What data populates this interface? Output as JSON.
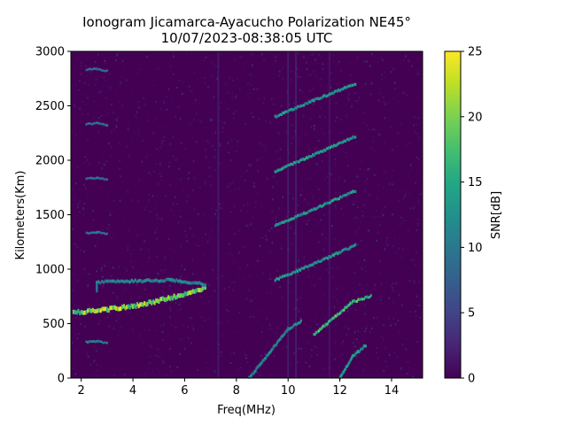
{
  "chart_data": {
    "type": "heatmap",
    "title": "Ionogram Jicamarca-Ayacucho Polarization NE45°",
    "subtitle": "10/07/2023-08:38:05 UTC",
    "xlabel": "Freq(MHz)",
    "ylabel": "Kilometers(Km)",
    "colorbar_label": "SNR[dB]",
    "colormap": "viridis",
    "xlim": [
      1.6,
      15.2
    ],
    "ylim": [
      0,
      3000
    ],
    "clim": [
      0,
      25
    ],
    "x_ticks": [
      2,
      4,
      6,
      8,
      10,
      12,
      14
    ],
    "y_ticks": [
      0,
      500,
      1000,
      1500,
      2000,
      2500,
      3000
    ],
    "colorbar_ticks": [
      0,
      5,
      10,
      15,
      20,
      25
    ],
    "grid": false,
    "background_snr": 0,
    "traces": [
      {
        "points": [
          [
            1.7,
            600
          ],
          [
            3.0,
            630
          ],
          [
            4.0,
            660
          ],
          [
            5.0,
            710
          ],
          [
            5.8,
            760
          ],
          [
            6.8,
            830
          ]
        ],
        "snr": 22,
        "width_km": 40
      },
      {
        "points": [
          [
            2.6,
            800
          ],
          [
            2.6,
            880
          ],
          [
            5.5,
            900
          ],
          [
            6.8,
            860
          ]
        ],
        "snr": 12,
        "width_km": 30
      },
      {
        "points": [
          [
            8.5,
            0
          ],
          [
            10.0,
            450
          ],
          [
            10.5,
            520
          ]
        ],
        "snr": 12,
        "width_km": 25
      },
      {
        "points": [
          [
            12.0,
            0
          ],
          [
            12.5,
            200
          ],
          [
            13.0,
            300
          ]
        ],
        "snr": 14,
        "width_km": 25
      },
      {
        "points": [
          [
            11.0,
            400
          ],
          [
            12.5,
            700
          ],
          [
            13.2,
            750
          ]
        ],
        "snr": 18,
        "width_km": 25
      },
      {
        "points": [
          [
            9.5,
            900
          ],
          [
            11.0,
            1050
          ],
          [
            12.6,
            1220
          ]
        ],
        "snr": 14,
        "width_km": 25
      },
      {
        "points": [
          [
            9.5,
            1400
          ],
          [
            11.0,
            1550
          ],
          [
            12.6,
            1720
          ]
        ],
        "snr": 14,
        "width_km": 25
      },
      {
        "points": [
          [
            9.5,
            1900
          ],
          [
            11.0,
            2050
          ],
          [
            12.6,
            2220
          ]
        ],
        "snr": 14,
        "width_km": 25
      },
      {
        "points": [
          [
            9.5,
            2400
          ],
          [
            11.0,
            2550
          ],
          [
            12.6,
            2700
          ]
        ],
        "snr": 14,
        "width_km": 25
      },
      {
        "points": [
          [
            2.2,
            330
          ],
          [
            2.6,
            340
          ],
          [
            3.0,
            320
          ]
        ],
        "snr": 12,
        "width_km": 20
      },
      {
        "points": [
          [
            2.2,
            1330
          ],
          [
            2.6,
            1340
          ],
          [
            3.0,
            1320
          ]
        ],
        "snr": 10,
        "width_km": 20
      },
      {
        "points": [
          [
            2.2,
            1830
          ],
          [
            2.6,
            1840
          ],
          [
            3.0,
            1820
          ]
        ],
        "snr": 10,
        "width_km": 20
      },
      {
        "points": [
          [
            2.2,
            2330
          ],
          [
            2.6,
            2340
          ],
          [
            3.0,
            2320
          ]
        ],
        "snr": 10,
        "width_km": 20
      },
      {
        "points": [
          [
            2.2,
            2830
          ],
          [
            2.6,
            2840
          ],
          [
            3.0,
            2820
          ]
        ],
        "snr": 10,
        "width_km": 20
      }
    ],
    "vertical_bands": [
      {
        "freq": 7.3,
        "snr": 5
      },
      {
        "freq": 10.0,
        "snr": 6
      },
      {
        "freq": 10.3,
        "snr": 6
      },
      {
        "freq": 11.6,
        "snr": 4
      }
    ]
  }
}
